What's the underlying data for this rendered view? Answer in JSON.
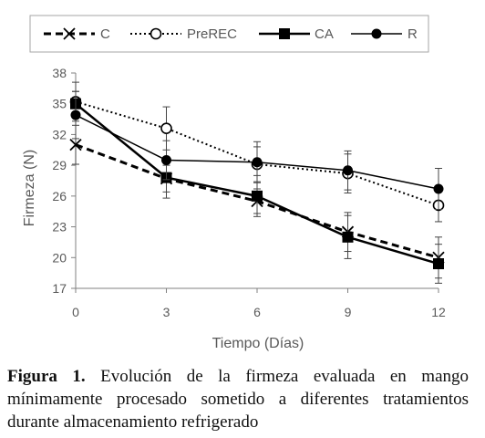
{
  "chart_data": {
    "type": "line",
    "xlabel": "Tiempo (Días)",
    "ylabel": "Firmeza (N)",
    "x": [
      0,
      3,
      6,
      9,
      12
    ],
    "x_ticks": [
      "0",
      "3",
      "6",
      "9",
      "12"
    ],
    "y_ticks": [
      "17",
      "20",
      "23",
      "26",
      "29",
      "32",
      "35",
      "38"
    ],
    "xlim": [
      0,
      12
    ],
    "ylim": [
      17,
      38
    ],
    "grid": false,
    "legend_position": "top",
    "series": [
      {
        "name": "C",
        "values": [
          31.0,
          27.7,
          25.5,
          22.5,
          20.0
        ],
        "errors": [
          1.9,
          1.3,
          1.2,
          1.9,
          2.0
        ],
        "line": "dashed",
        "marker": "x",
        "color": "#000000"
      },
      {
        "name": "PreREC",
        "values": [
          35.2,
          32.6,
          29.1,
          28.2,
          25.1
        ],
        "errors": [
          1.9,
          2.1,
          1.7,
          1.9,
          1.6
        ],
        "line": "dotted",
        "marker": "circle-open",
        "color": "#000000"
      },
      {
        "name": "CA",
        "values": [
          35.0,
          27.8,
          26.0,
          22.0,
          19.4
        ],
        "errors": [
          1.2,
          2.0,
          2.0,
          2.1,
          1.9
        ],
        "line": "solid-thick",
        "marker": "square",
        "color": "#000000"
      },
      {
        "name": "R",
        "values": [
          33.9,
          29.5,
          29.3,
          28.5,
          26.7
        ],
        "errors": [
          2.3,
          1.9,
          2.0,
          1.9,
          2.0
        ],
        "line": "solid",
        "marker": "circle-filled",
        "color": "#000000"
      }
    ]
  },
  "caption": {
    "label": "Figura 1.",
    "text": "Evolución de la firmeza evaluada en mango mínimamente procesado sometido a diferentes tratamientos durante almacenamiento refrigerado"
  }
}
